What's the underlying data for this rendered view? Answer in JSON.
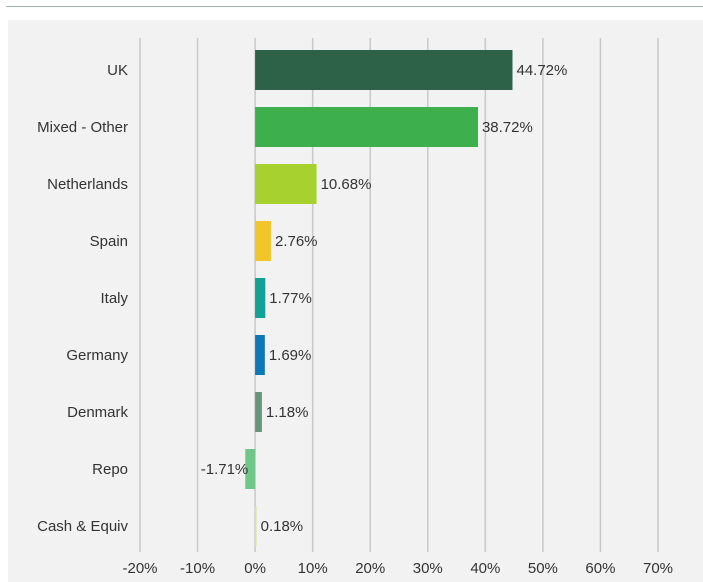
{
  "chart_data": {
    "type": "bar",
    "orientation": "horizontal",
    "categories": [
      "UK",
      "Mixed - Other",
      "Netherlands",
      "Spain",
      "Italy",
      "Germany",
      "Denmark",
      "Repo",
      "Cash & Equiv"
    ],
    "values": [
      44.72,
      38.72,
      10.68,
      2.76,
      1.77,
      1.69,
      1.18,
      -1.71,
      0.18
    ],
    "value_labels": [
      "44.72%",
      "38.72%",
      "10.68%",
      "2.76%",
      "1.77%",
      "1.69%",
      "1.18%",
      "-1.71%",
      "0.18%"
    ],
    "bar_colors": [
      "#2d6249",
      "#3daf4d",
      "#a7d12f",
      "#f2c62a",
      "#11a195",
      "#0e77b8",
      "#6b9480",
      "#6fc78a",
      "#d6e6a0"
    ],
    "xlim": [
      -20,
      70
    ],
    "xticks": [
      -20,
      -10,
      0,
      10,
      20,
      30,
      40,
      50,
      60,
      70
    ],
    "xtick_labels": [
      "-20%",
      "-10%",
      "0%",
      "10%",
      "20%",
      "30%",
      "40%",
      "50%",
      "60%",
      "70%"
    ],
    "grid": "vertical",
    "legend": "none",
    "title": "",
    "xlabel": "",
    "ylabel": ""
  },
  "colors": {
    "background": "#ffffff",
    "panel": "#f2f2f2",
    "gridline": "#c8c8c8",
    "top_rule": "#9fb5ad",
    "text": "#333333"
  }
}
